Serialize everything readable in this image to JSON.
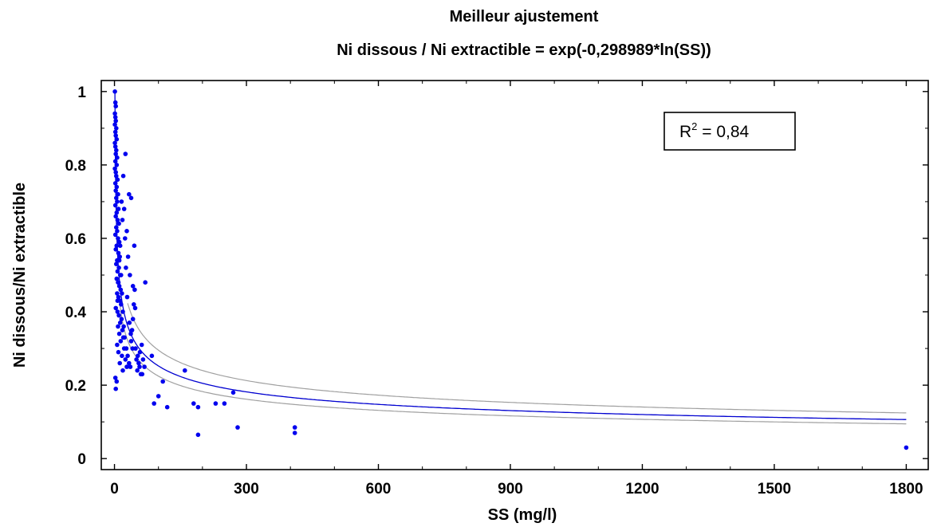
{
  "chart_data": {
    "type": "scatter",
    "title": "Meilleur ajustement",
    "subtitle": "Ni dissous / Ni extractible = exp(-0,298989*ln(SS))",
    "xlabel": "SS (mg/l)",
    "ylabel": "Ni dissous/Ni extractible",
    "xlim": [
      -30,
      1850
    ],
    "ylim": [
      -0.03,
      1.03
    ],
    "xticks": [
      0,
      300,
      600,
      900,
      1200,
      1500,
      1800
    ],
    "yticks": [
      0,
      0.2,
      0.4,
      0.6,
      0.8,
      1
    ],
    "ytick_labels": [
      "0",
      "0.2",
      "0.4",
      "0.6",
      "0.8",
      "1"
    ],
    "grid": false,
    "annotation": {
      "base": "R",
      "sup": "2",
      "text": " = 0,84"
    },
    "fit": {
      "coefficient": -0.298989,
      "color": "#0000d0"
    },
    "band_color": "#a0a0a0",
    "point_color": "#0000ee",
    "points": [
      [
        1,
        1.0
      ],
      [
        2,
        0.97
      ],
      [
        3,
        0.96
      ],
      [
        1,
        0.94
      ],
      [
        2,
        0.93
      ],
      [
        3,
        0.92
      ],
      [
        1,
        0.91
      ],
      [
        4,
        0.9
      ],
      [
        2,
        0.89
      ],
      [
        3,
        0.88
      ],
      [
        5,
        0.87
      ],
      [
        1,
        0.86
      ],
      [
        2,
        0.85
      ],
      [
        4,
        0.84
      ],
      [
        3,
        0.83
      ],
      [
        6,
        0.82
      ],
      [
        2,
        0.81
      ],
      [
        5,
        0.8
      ],
      [
        1,
        0.79
      ],
      [
        3,
        0.78
      ],
      [
        4,
        0.77
      ],
      [
        7,
        0.76
      ],
      [
        2,
        0.75
      ],
      [
        5,
        0.74
      ],
      [
        3,
        0.73
      ],
      [
        8,
        0.72
      ],
      [
        4,
        0.71
      ],
      [
        6,
        0.7
      ],
      [
        2,
        0.69
      ],
      [
        9,
        0.68
      ],
      [
        5,
        0.67
      ],
      [
        3,
        0.66
      ],
      [
        7,
        0.65
      ],
      [
        10,
        0.64
      ],
      [
        4,
        0.63
      ],
      [
        6,
        0.62
      ],
      [
        2,
        0.61
      ],
      [
        8,
        0.6
      ],
      [
        11,
        0.59
      ],
      [
        5,
        0.58
      ],
      [
        3,
        0.57
      ],
      [
        9,
        0.56
      ],
      [
        12,
        0.55
      ],
      [
        6,
        0.54
      ],
      [
        4,
        0.53
      ],
      [
        10,
        0.52
      ],
      [
        7,
        0.51
      ],
      [
        13,
        0.5
      ],
      [
        5,
        0.49
      ],
      [
        8,
        0.48
      ],
      [
        11,
        0.47
      ],
      [
        14,
        0.46
      ],
      [
        6,
        0.45
      ],
      [
        9,
        0.44
      ],
      [
        12,
        0.43
      ],
      [
        15,
        0.42
      ],
      [
        3,
        0.41
      ],
      [
        7,
        0.4
      ],
      [
        10,
        0.39
      ],
      [
        16,
        0.38
      ],
      [
        13,
        0.37
      ],
      [
        8,
        0.36
      ],
      [
        18,
        0.35
      ],
      [
        11,
        0.34
      ],
      [
        20,
        0.33
      ],
      [
        14,
        0.32
      ],
      [
        6,
        0.31
      ],
      [
        22,
        0.3
      ],
      [
        9,
        0.29
      ],
      [
        17,
        0.28
      ],
      [
        25,
        0.27
      ],
      [
        12,
        0.26
      ],
      [
        28,
        0.25
      ],
      [
        19,
        0.24
      ],
      [
        2,
        0.22
      ],
      [
        3,
        0.19
      ],
      [
        5,
        0.21
      ],
      [
        7,
        0.43
      ],
      [
        9,
        0.48
      ],
      [
        11,
        0.54
      ],
      [
        13,
        0.58
      ],
      [
        15,
        0.5
      ],
      [
        17,
        0.45
      ],
      [
        19,
        0.4
      ],
      [
        21,
        0.36
      ],
      [
        23,
        0.33
      ],
      [
        27,
        0.3
      ],
      [
        30,
        0.28
      ],
      [
        33,
        0.26
      ],
      [
        36,
        0.25
      ],
      [
        38,
        0.32
      ],
      [
        40,
        0.35
      ],
      [
        42,
        0.38
      ],
      [
        44,
        0.42
      ],
      [
        46,
        0.46
      ],
      [
        48,
        0.3
      ],
      [
        50,
        0.27
      ],
      [
        52,
        0.24
      ],
      [
        55,
        0.26
      ],
      [
        58,
        0.29
      ],
      [
        60,
        0.23
      ],
      [
        62,
        0.31
      ],
      [
        65,
        0.27
      ],
      [
        68,
        0.25
      ],
      [
        70,
        0.48
      ],
      [
        33,
        0.72
      ],
      [
        38,
        0.71
      ],
      [
        45,
        0.58
      ],
      [
        25,
        0.83
      ],
      [
        20,
        0.77
      ],
      [
        22,
        0.68
      ],
      [
        28,
        0.62
      ],
      [
        31,
        0.55
      ],
      [
        35,
        0.5
      ],
      [
        42,
        0.47
      ],
      [
        47,
        0.41
      ],
      [
        24,
        0.6
      ],
      [
        18,
        0.65
      ],
      [
        16,
        0.7
      ],
      [
        26,
        0.52
      ],
      [
        29,
        0.44
      ],
      [
        34,
        0.37
      ],
      [
        37,
        0.34
      ],
      [
        41,
        0.3
      ],
      [
        53,
        0.28
      ],
      [
        57,
        0.25
      ],
      [
        63,
        0.23
      ],
      [
        85,
        0.28
      ],
      [
        90,
        0.15
      ],
      [
        100,
        0.17
      ],
      [
        110,
        0.21
      ],
      [
        120,
        0.14
      ],
      [
        160,
        0.24
      ],
      [
        180,
        0.15
      ],
      [
        190,
        0.065
      ],
      [
        190,
        0.14
      ],
      [
        230,
        0.15
      ],
      [
        250,
        0.15
      ],
      [
        270,
        0.18
      ],
      [
        280,
        0.085
      ],
      [
        410,
        0.085
      ],
      [
        410,
        0.07
      ],
      [
        1800,
        0.03
      ]
    ]
  }
}
